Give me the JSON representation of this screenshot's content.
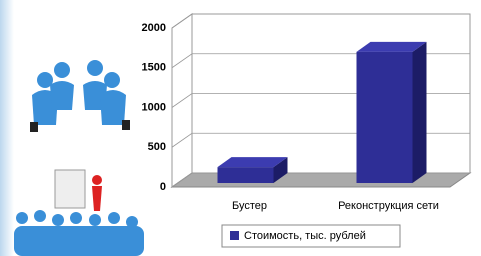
{
  "chart_data": {
    "type": "bar3d",
    "categories": [
      "Бустер",
      "Реконструкция сети"
    ],
    "series": [
      {
        "name": "Стоимость,   тыс. рублей",
        "color": "#2e2e96",
        "values": [
          250,
          1700
        ]
      }
    ],
    "ylim": [
      0,
      2000
    ],
    "yticks": [
      0,
      500,
      1000,
      1500,
      2000
    ],
    "grid": true,
    "legend": "bottom"
  }
}
